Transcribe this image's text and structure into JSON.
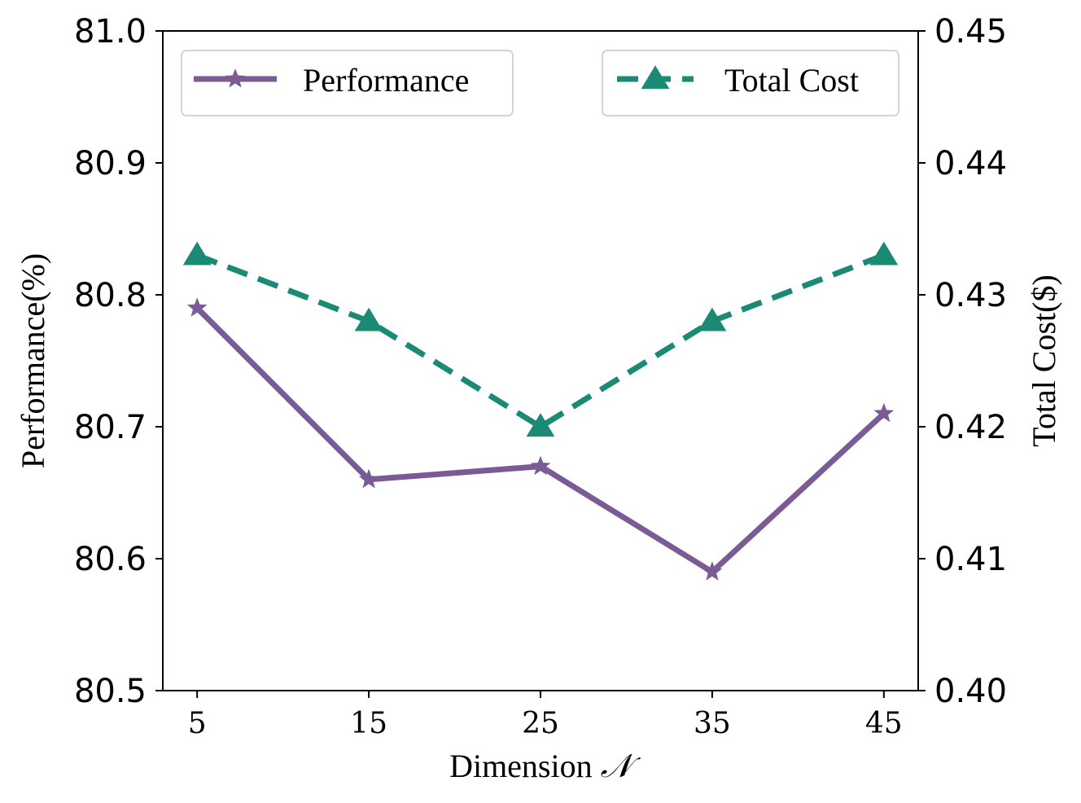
{
  "chart_data": {
    "type": "line",
    "title": "",
    "x": [
      5,
      15,
      25,
      35,
      45
    ],
    "x_tick_labels": [
      "5",
      "15",
      "25",
      "35",
      "45"
    ],
    "xlabel": "Dimension",
    "xlabel_symbol": "𝒩",
    "ylabel_left": "Performance(%)",
    "ylabel_right": "Total Cost($)",
    "ylim_left": [
      80.5,
      81.0
    ],
    "ylim_right": [
      0.4,
      0.45
    ],
    "y_ticks_left": [
      "80.5",
      "80.6",
      "80.7",
      "80.8",
      "80.9",
      "81.0"
    ],
    "y_ticks_right": [
      "0.40",
      "0.41",
      "0.42",
      "0.43",
      "0.44",
      "0.45"
    ],
    "series": [
      {
        "name": "Performance",
        "axis": "left",
        "values": [
          80.79,
          80.66,
          80.67,
          80.59,
          80.71
        ],
        "color": "#7b5b96",
        "marker": "star",
        "line_style": "solid"
      },
      {
        "name": "Total Cost",
        "axis": "right",
        "values": [
          0.433,
          0.428,
          0.42,
          0.428,
          0.433
        ],
        "color": "#1a8a74",
        "marker": "triangle",
        "line_style": "dashed"
      }
    ],
    "legend": [
      {
        "label": "Performance",
        "placement": "top-left"
      },
      {
        "label": "Total Cost",
        "placement": "top-right"
      }
    ],
    "grid": false
  }
}
